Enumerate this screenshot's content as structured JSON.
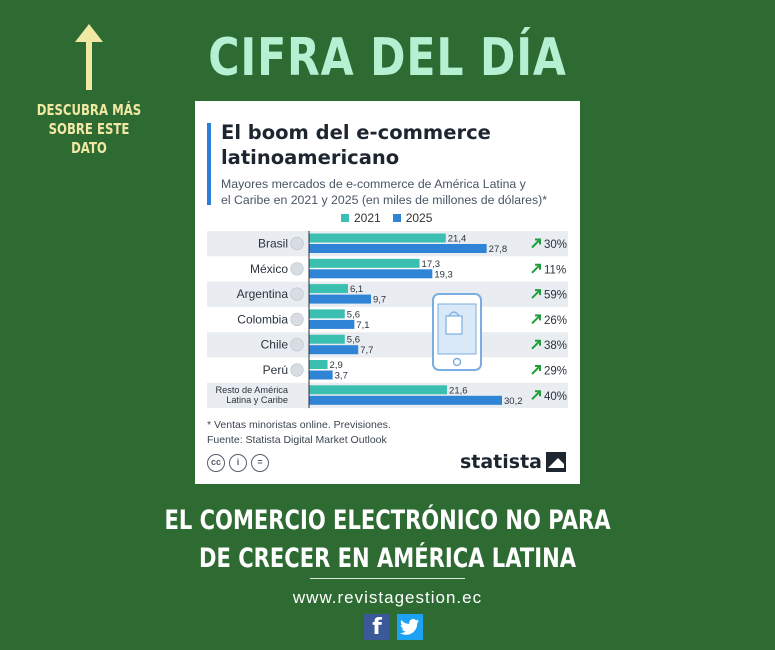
{
  "header": {
    "title": "CIFRA DEL DÍA"
  },
  "side_note": {
    "line1": "DESCUBRA MÁS",
    "line2": "SOBRE ESTE DATO"
  },
  "chart_data": {
    "type": "bar",
    "orientation": "horizontal",
    "title": "El boom del e-commerce latinoamericano",
    "subtitle_line1": "Mayores mercados de e-commerce de América Latina y",
    "subtitle_line2": "el Caribe en 2021 y 2025 (en miles de millones de dólares)*",
    "categories": [
      "Brasil",
      "México",
      "Argentina",
      "Colombia",
      "Chile",
      "Perú",
      "Resto de América\nLatina y Caribe"
    ],
    "series": [
      {
        "name": "2021",
        "color": "#3bbfb0",
        "values": [
          21.4,
          17.3,
          6.1,
          5.6,
          5.6,
          2.9,
          21.6
        ]
      },
      {
        "name": "2025",
        "color": "#2f84d6",
        "values": [
          27.8,
          19.3,
          9.7,
          7.1,
          7.7,
          3.7,
          30.2
        ]
      }
    ],
    "growth": [
      "30%",
      "11%",
      "59%",
      "26%",
      "38%",
      "29%",
      "40%"
    ],
    "growth_color": "#1f9e3a",
    "value_labels_2021": [
      "21,4",
      "17,3",
      "6,1",
      "5,6",
      "5,6",
      "2,9",
      "21,6"
    ],
    "value_labels_2025": [
      "27,8",
      "19,3",
      "9,7",
      "7,1",
      "7,7",
      "3,7",
      "30,2"
    ],
    "xlim": [
      0,
      30.2
    ],
    "legend_position": "top",
    "footnote_line1": "* Ventas minoristas online. Previsiones.",
    "footnote_line2": "Fuente: Statista Digital Market Outlook",
    "brand": "statista"
  },
  "cc_icons": [
    "cc-icon",
    "person-icon",
    "equals-icon"
  ],
  "tagline": {
    "line1": "EL COMERCIO ELECTRÓNICO NO PARA",
    "line2": "DE CRECER EN AMÉRICA LATINA"
  },
  "website": "www.revistagestion.ec",
  "social": [
    "facebook-icon",
    "twitter-icon"
  ],
  "colors": {
    "background": "#2e6b33",
    "title": "#b5f0d2",
    "note": "#f1e8a4"
  }
}
